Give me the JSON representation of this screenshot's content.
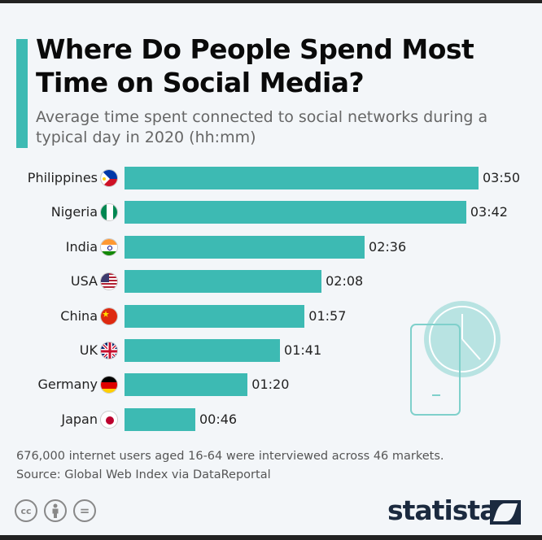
{
  "title": "Where Do People Spend Most Time on Social Media?",
  "subtitle": "Average time spent connected to social networks during a typical day in 2020 (hh:mm)",
  "colors": {
    "bar": "#3dbab3",
    "accent": "#3dbab3",
    "background": "#f3f6f9"
  },
  "chart_data": {
    "type": "bar",
    "orientation": "horizontal",
    "title": "Where Do People Spend Most Time on Social Media?",
    "subtitle": "Average time spent connected to social networks during a typical day in 2020 (hh:mm)",
    "categories": [
      "Philippines",
      "Nigeria",
      "India",
      "USA",
      "China",
      "UK",
      "Germany",
      "Japan"
    ],
    "flags": [
      "flag-philippines-icon",
      "flag-nigeria-icon",
      "flag-india-icon",
      "flag-usa-icon",
      "flag-china-icon",
      "flag-uk-icon",
      "flag-germany-icon",
      "flag-japan-icon"
    ],
    "labels": [
      "03:50",
      "03:42",
      "02:36",
      "02:08",
      "01:57",
      "01:41",
      "01:20",
      "00:46"
    ],
    "values_minutes": [
      230,
      222,
      156,
      128,
      117,
      101,
      80,
      46
    ],
    "grid": false,
    "legend": "none"
  },
  "footer": {
    "note": "676,000 internet users aged 16-64 were interviewed across 46 markets.",
    "source": "Source: Global Web Index via DataReportal",
    "license_icons": [
      "cc-icon",
      "attribution-icon",
      "no-derivatives-icon"
    ],
    "cc_text": "cc",
    "nd_text": "=",
    "logo": "statista"
  }
}
